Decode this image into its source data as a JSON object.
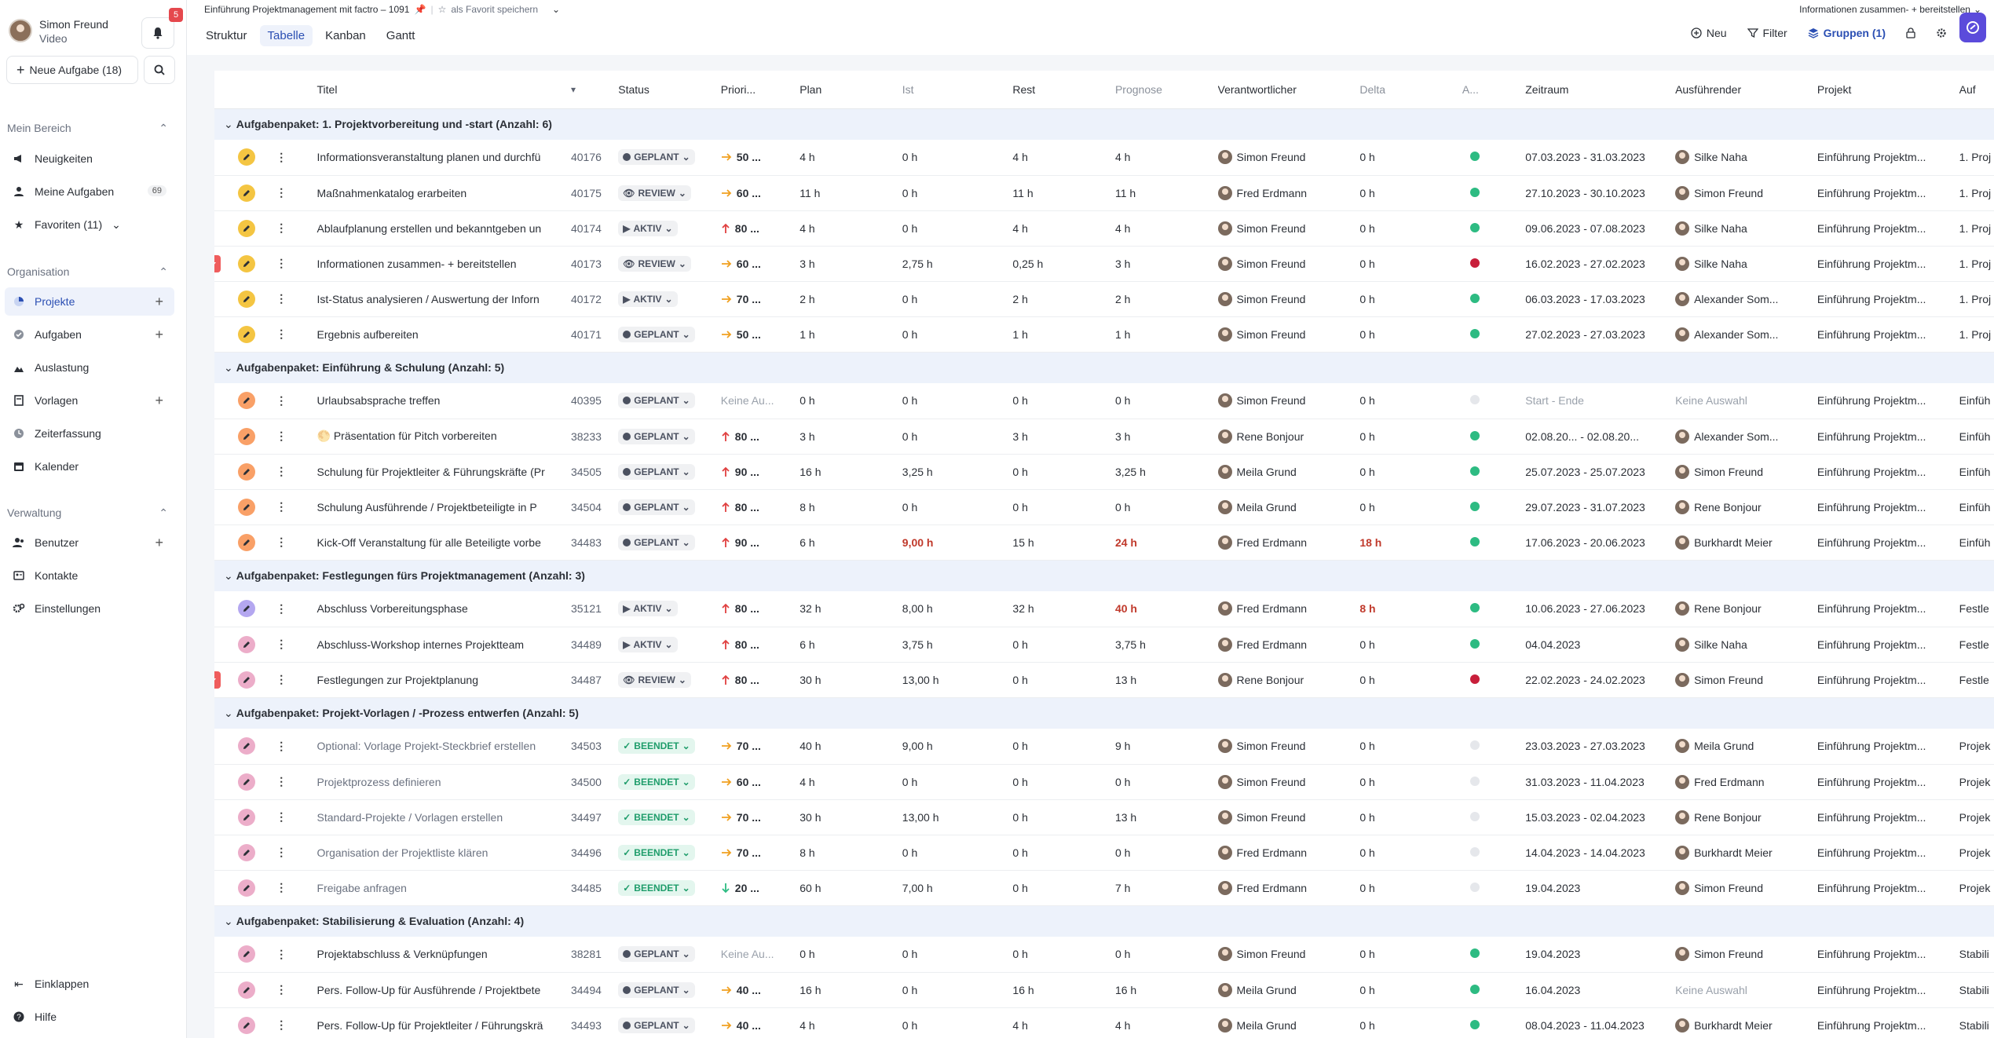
{
  "sidebar": {
    "user_name": "Simon Freund",
    "user_sub": "Video",
    "notif_count": "5",
    "new_task_label": "Neue Aufgabe (18)",
    "sections": {
      "mein_bereich": "Mein Bereich",
      "organisation": "Organisation",
      "verwaltung": "Verwaltung"
    },
    "items": {
      "neuigkeiten": "Neuigkeiten",
      "meine_aufgaben": "Meine Aufgaben",
      "meine_aufgaben_count": "69",
      "favoriten": "Favoriten (11)",
      "projekte": "Projekte",
      "aufgaben": "Aufgaben",
      "auslastung": "Auslastung",
      "vorlagen": "Vorlagen",
      "zeiterfassung": "Zeiterfassung",
      "kalender": "Kalender",
      "benutzer": "Benutzer",
      "kontakte": "Kontakte",
      "einstellungen": "Einstellungen",
      "einklappen": "Einklappen",
      "hilfe": "Hilfe"
    }
  },
  "topbar": {
    "breadcrumb": "Einführung Projektmanagement mit factro – 1091",
    "favorite": "als Favorit speichern",
    "top_right": "Informationen zusammen- + bereitstellen",
    "tabs": [
      "Struktur",
      "Tabelle",
      "Kanban",
      "Gantt"
    ],
    "active_tab": "Tabelle",
    "neu": "Neu",
    "filter": "Filter",
    "gruppen": "Gruppen (1)"
  },
  "table": {
    "headers": {
      "titel": "Titel",
      "status": "Status",
      "prio": "Priori...",
      "plan": "Plan",
      "ist": "Ist",
      "rest": "Rest",
      "prognose": "Prognose",
      "verantwortlicher": "Verantwortlicher",
      "delta": "Delta",
      "amp": "A...",
      "zeitraum": "Zeitraum",
      "ausfuehrender": "Ausführender",
      "projekt": "Projekt",
      "auf": "Auf"
    },
    "groups": [
      {
        "label": "Aufgabenpaket: 1. Projektvorbereitung und -start (Anzahl: 6)",
        "rows": [
          {
            "flag": false,
            "pencil": "yellow",
            "title": "Informationsveranstaltung planen und durchfü",
            "id": "40176",
            "status": "GEPLANT",
            "prio_dir": "right",
            "prio": "50 ...",
            "plan": "4 h",
            "ist": "0 h",
            "ist_red": false,
            "rest": "4 h",
            "prog": "4 h",
            "prog_red": false,
            "resp": "Simon Freund",
            "delta": "0 h",
            "delta_red": false,
            "amp": "green",
            "zeit": "07.03.2023 - 31.03.2023",
            "zeit_muted": false,
            "exec": "Silke Naha",
            "exec_muted": false,
            "proj": "Einführung Projektm...",
            "auf": "1. Proj"
          },
          {
            "flag": false,
            "pencil": "yellow",
            "title": "Maßnahmenkatalog erarbeiten",
            "id": "40175",
            "status": "REVIEW",
            "prio_dir": "right",
            "prio": "60 ...",
            "plan": "11 h",
            "ist": "0 h",
            "ist_red": false,
            "rest": "11 h",
            "prog": "11 h",
            "prog_red": false,
            "resp": "Fred Erdmann",
            "delta": "0 h",
            "delta_red": false,
            "amp": "green",
            "zeit": "27.10.2023 - 30.10.2023",
            "zeit_muted": false,
            "exec": "Simon Freund",
            "exec_muted": false,
            "proj": "Einführung Projektm...",
            "auf": "1. Proj"
          },
          {
            "flag": false,
            "pencil": "yellow",
            "title": "Ablaufplanung erstellen und bekanntgeben un",
            "id": "40174",
            "status": "AKTIV",
            "prio_dir": "up",
            "prio": "80 ...",
            "plan": "4 h",
            "ist": "0 h",
            "ist_red": false,
            "rest": "4 h",
            "prog": "4 h",
            "prog_red": false,
            "resp": "Simon Freund",
            "delta": "0 h",
            "delta_red": false,
            "amp": "green",
            "zeit": "09.06.2023 - 07.08.2023",
            "zeit_muted": false,
            "exec": "Silke Naha",
            "exec_muted": false,
            "proj": "Einführung Projektm...",
            "auf": "1. Proj"
          },
          {
            "flag": true,
            "pencil": "yellow",
            "title": "Informationen zusammen- + bereitstellen",
            "id": "40173",
            "status": "REVIEW",
            "prio_dir": "right",
            "prio": "60 ...",
            "plan": "3 h",
            "ist": "2,75 h",
            "ist_red": false,
            "rest": "0,25 h",
            "prog": "3 h",
            "prog_red": false,
            "resp": "Simon Freund",
            "delta": "0 h",
            "delta_red": false,
            "amp": "red",
            "zeit": "16.02.2023 - 27.02.2023",
            "zeit_muted": false,
            "exec": "Silke Naha",
            "exec_muted": false,
            "proj": "Einführung Projektm...",
            "auf": "1. Proj"
          },
          {
            "flag": false,
            "pencil": "yellow",
            "title": "Ist-Status analysieren / Auswertung der Inforn",
            "id": "40172",
            "status": "AKTIV",
            "prio_dir": "right",
            "prio": "70 ...",
            "plan": "2 h",
            "ist": "0 h",
            "ist_red": false,
            "rest": "2 h",
            "prog": "2 h",
            "prog_red": false,
            "resp": "Simon Freund",
            "delta": "0 h",
            "delta_red": false,
            "amp": "green",
            "zeit": "06.03.2023 - 17.03.2023",
            "zeit_muted": false,
            "exec": "Alexander Som...",
            "exec_muted": false,
            "proj": "Einführung Projektm...",
            "auf": "1. Proj"
          },
          {
            "flag": false,
            "pencil": "yellow",
            "title": "Ergebnis aufbereiten",
            "id": "40171",
            "status": "GEPLANT",
            "prio_dir": "right",
            "prio": "50 ...",
            "plan": "1 h",
            "ist": "0 h",
            "ist_red": false,
            "rest": "1 h",
            "prog": "1 h",
            "prog_red": false,
            "resp": "Simon Freund",
            "delta": "0 h",
            "delta_red": false,
            "amp": "green",
            "zeit": "27.02.2023 - 27.03.2023",
            "zeit_muted": false,
            "exec": "Alexander Som...",
            "exec_muted": false,
            "proj": "Einführung Projektm...",
            "auf": "1. Proj"
          }
        ]
      },
      {
        "label": "Aufgabenpaket: Einführung & Schulung (Anzahl: 5)",
        "rows": [
          {
            "flag": false,
            "pencil": "orange",
            "title": "Urlaubsabsprache treffen",
            "id": "40395",
            "status": "GEPLANT",
            "prio_dir": "none",
            "prio": "Keine Au...",
            "plan": "0 h",
            "ist": "0 h",
            "ist_red": false,
            "rest": "0 h",
            "prog": "0 h",
            "prog_red": false,
            "resp": "Simon Freund",
            "delta": "0 h",
            "delta_red": false,
            "amp": "grey",
            "zeit": "Start - Ende",
            "zeit_muted": true,
            "exec": "Keine Auswahl",
            "exec_muted": true,
            "proj": "Einführung Projektm...",
            "auf": "Einfüh"
          },
          {
            "flag": false,
            "pencil": "orange",
            "title": "🌕 Präsentation für Pitch vorbereiten",
            "id": "38233",
            "status": "GEPLANT",
            "prio_dir": "up",
            "prio": "80 ...",
            "plan": "3 h",
            "ist": "0 h",
            "ist_red": false,
            "rest": "3 h",
            "prog": "3 h",
            "prog_red": false,
            "resp": "Rene Bonjour",
            "delta": "0 h",
            "delta_red": false,
            "amp": "green",
            "zeit": "02.08.20... - 02.08.20...",
            "zeit_muted": false,
            "exec": "Alexander Som...",
            "exec_muted": false,
            "proj": "Einführung Projektm...",
            "auf": "Einfüh"
          },
          {
            "flag": false,
            "pencil": "orange",
            "title": "Schulung für Projektleiter & Führungskräfte (Pr",
            "id": "34505",
            "status": "GEPLANT",
            "prio_dir": "up",
            "prio": "90 ...",
            "plan": "16 h",
            "ist": "3,25 h",
            "ist_red": false,
            "rest": "0 h",
            "prog": "3,25 h",
            "prog_red": false,
            "resp": "Meila Grund",
            "delta": "0 h",
            "delta_red": false,
            "amp": "green",
            "zeit": "25.07.2023 - 25.07.2023",
            "zeit_muted": false,
            "exec": "Simon Freund",
            "exec_muted": false,
            "proj": "Einführung Projektm...",
            "auf": "Einfüh"
          },
          {
            "flag": false,
            "pencil": "orange",
            "title": "Schulung Ausführende / Projektbeteiligte in P",
            "id": "34504",
            "status": "GEPLANT",
            "prio_dir": "up",
            "prio": "80 ...",
            "plan": "8 h",
            "ist": "0 h",
            "ist_red": false,
            "rest": "0 h",
            "prog": "0 h",
            "prog_red": false,
            "resp": "Meila Grund",
            "delta": "0 h",
            "delta_red": false,
            "amp": "green",
            "zeit": "29.07.2023 - 31.07.2023",
            "zeit_muted": false,
            "exec": "Rene Bonjour",
            "exec_muted": false,
            "proj": "Einführung Projektm...",
            "auf": "Einfüh"
          },
          {
            "flag": false,
            "pencil": "orange",
            "title": "Kick-Off Veranstaltung für alle Beteiligte vorbe",
            "id": "34483",
            "status": "GEPLANT",
            "prio_dir": "up",
            "prio": "90 ...",
            "plan": "6 h",
            "ist": "9,00 h",
            "ist_red": true,
            "rest": "15 h",
            "prog": "24 h",
            "prog_red": true,
            "resp": "Fred Erdmann",
            "delta": "18 h",
            "delta_red": true,
            "amp": "green",
            "zeit": "17.06.2023 - 20.06.2023",
            "zeit_muted": false,
            "exec": "Burkhardt Meier",
            "exec_muted": false,
            "proj": "Einführung Projektm...",
            "auf": "Einfüh"
          }
        ]
      },
      {
        "label": "Aufgabenpaket: Festlegungen fürs Projektmanagement (Anzahl: 3)",
        "rows": [
          {
            "flag": false,
            "pencil": "purple",
            "title": "Abschluss Vorbereitungsphase",
            "id": "35121",
            "status": "AKTIV",
            "prio_dir": "up",
            "prio": "80 ...",
            "plan": "32 h",
            "ist": "8,00 h",
            "ist_red": false,
            "rest": "32 h",
            "prog": "40 h",
            "prog_red": true,
            "resp": "Fred Erdmann",
            "delta": "8 h",
            "delta_red": true,
            "amp": "green",
            "zeit": "10.06.2023 - 27.06.2023",
            "zeit_muted": false,
            "exec": "Rene Bonjour",
            "exec_muted": false,
            "proj": "Einführung Projektm...",
            "auf": "Festle"
          },
          {
            "flag": false,
            "pencil": "pink",
            "title": "Abschluss-Workshop internes Projektteam",
            "id": "34489",
            "status": "AKTIV",
            "prio_dir": "up",
            "prio": "80 ...",
            "plan": "6 h",
            "ist": "3,75 h",
            "ist_red": false,
            "rest": "0 h",
            "prog": "3,75 h",
            "prog_red": false,
            "resp": "Fred Erdmann",
            "delta": "0 h",
            "delta_red": false,
            "amp": "green",
            "zeit": "04.04.2023",
            "zeit_muted": false,
            "exec": "Silke Naha",
            "exec_muted": false,
            "proj": "Einführung Projektm...",
            "auf": "Festle"
          },
          {
            "flag": true,
            "pencil": "pink",
            "title": "Festlegungen zur Projektplanung",
            "id": "34487",
            "status": "REVIEW",
            "prio_dir": "up",
            "prio": "80 ...",
            "plan": "30 h",
            "ist": "13,00 h",
            "ist_red": false,
            "rest": "0 h",
            "prog": "13 h",
            "prog_red": false,
            "resp": "Rene Bonjour",
            "delta": "0 h",
            "delta_red": false,
            "amp": "red",
            "zeit": "22.02.2023 - 24.02.2023",
            "zeit_muted": false,
            "exec": "Simon Freund",
            "exec_muted": false,
            "proj": "Einführung Projektm...",
            "auf": "Festle"
          }
        ]
      },
      {
        "label": "Aufgabenpaket: Projekt-Vorlagen / -Prozess entwerfen (Anzahl: 5)",
        "rows": [
          {
            "flag": false,
            "pencil": "pink",
            "title": "Optional: Vorlage Projekt-Steckbrief erstellen",
            "id": "34503",
            "status": "BEENDET",
            "prio_dir": "right",
            "prio": "70 ...",
            "plan": "40 h",
            "ist": "9,00 h",
            "ist_red": false,
            "rest": "0 h",
            "prog": "9 h",
            "prog_red": false,
            "resp": "Simon Freund",
            "delta": "0 h",
            "delta_red": false,
            "amp": "grey",
            "zeit": "23.03.2023 - 27.03.2023",
            "zeit_muted": false,
            "exec": "Meila Grund",
            "exec_muted": false,
            "proj": "Einführung Projektm...",
            "auf": "Projek"
          },
          {
            "flag": false,
            "pencil": "pink",
            "title": "Projektprozess definieren",
            "id": "34500",
            "status": "BEENDET",
            "prio_dir": "right",
            "prio": "60 ...",
            "plan": "4 h",
            "ist": "0 h",
            "ist_red": false,
            "rest": "0 h",
            "prog": "0 h",
            "prog_red": false,
            "resp": "Simon Freund",
            "delta": "0 h",
            "delta_red": false,
            "amp": "grey",
            "zeit": "31.03.2023 - 11.04.2023",
            "zeit_muted": false,
            "exec": "Fred Erdmann",
            "exec_muted": false,
            "proj": "Einführung Projektm...",
            "auf": "Projek"
          },
          {
            "flag": false,
            "pencil": "pink",
            "title": "Standard-Projekte / Vorlagen erstellen",
            "id": "34497",
            "status": "BEENDET",
            "prio_dir": "right",
            "prio": "70 ...",
            "plan": "30 h",
            "ist": "13,00 h",
            "ist_red": false,
            "rest": "0 h",
            "prog": "13 h",
            "prog_red": false,
            "resp": "Simon Freund",
            "delta": "0 h",
            "delta_red": false,
            "amp": "grey",
            "zeit": "15.03.2023 - 02.04.2023",
            "zeit_muted": false,
            "exec": "Rene Bonjour",
            "exec_muted": false,
            "proj": "Einführung Projektm...",
            "auf": "Projek"
          },
          {
            "flag": false,
            "pencil": "pink",
            "title": "Organisation der Projektliste klären",
            "id": "34496",
            "status": "BEENDET",
            "prio_dir": "right",
            "prio": "70 ...",
            "plan": "8 h",
            "ist": "0 h",
            "ist_red": false,
            "rest": "0 h",
            "prog": "0 h",
            "prog_red": false,
            "resp": "Fred Erdmann",
            "delta": "0 h",
            "delta_red": false,
            "amp": "grey",
            "zeit": "14.04.2023 - 14.04.2023",
            "zeit_muted": false,
            "exec": "Burkhardt Meier",
            "exec_muted": false,
            "proj": "Einführung Projektm...",
            "auf": "Projek"
          },
          {
            "flag": false,
            "pencil": "pink",
            "title": "Freigabe anfragen",
            "id": "34485",
            "status": "BEENDET",
            "prio_dir": "down",
            "prio": "20 ...",
            "plan": "60 h",
            "ist": "7,00 h",
            "ist_red": false,
            "rest": "0 h",
            "prog": "7 h",
            "prog_red": false,
            "resp": "Fred Erdmann",
            "delta": "0 h",
            "delta_red": false,
            "amp": "grey",
            "zeit": "19.04.2023",
            "zeit_muted": false,
            "exec": "Simon Freund",
            "exec_muted": false,
            "proj": "Einführung Projektm...",
            "auf": "Projek"
          }
        ]
      },
      {
        "label": "Aufgabenpaket: Stabilisierung & Evaluation (Anzahl: 4)",
        "rows": [
          {
            "flag": false,
            "pencil": "pink",
            "title": "Projektabschluss & Verknüpfungen",
            "id": "38281",
            "status": "GEPLANT",
            "prio_dir": "none",
            "prio": "Keine Au...",
            "plan": "0 h",
            "ist": "0 h",
            "ist_red": false,
            "rest": "0 h",
            "prog": "0 h",
            "prog_red": false,
            "resp": "Simon Freund",
            "delta": "0 h",
            "delta_red": false,
            "amp": "green",
            "zeit": "19.04.2023",
            "zeit_muted": false,
            "exec": "Simon Freund",
            "exec_muted": false,
            "proj": "Einführung Projektm...",
            "auf": "Stabili"
          },
          {
            "flag": false,
            "pencil": "pink",
            "title": "Pers. Follow-Up für Ausführende / Projektbete",
            "id": "34494",
            "status": "GEPLANT",
            "prio_dir": "right",
            "prio": "40 ...",
            "plan": "16 h",
            "ist": "0 h",
            "ist_red": false,
            "rest": "16 h",
            "prog": "16 h",
            "prog_red": false,
            "resp": "Meila Grund",
            "delta": "0 h",
            "delta_red": false,
            "amp": "green",
            "zeit": "16.04.2023",
            "zeit_muted": false,
            "exec": "Keine Auswahl",
            "exec_muted": true,
            "proj": "Einführung Projektm...",
            "auf": "Stabili"
          },
          {
            "flag": false,
            "pencil": "pink",
            "title": "Pers. Follow-Up für Projektleiter / Führungskrä",
            "id": "34493",
            "status": "GEPLANT",
            "prio_dir": "right",
            "prio": "40 ...",
            "plan": "4 h",
            "ist": "0 h",
            "ist_red": false,
            "rest": "4 h",
            "prog": "4 h",
            "prog_red": false,
            "resp": "Meila Grund",
            "delta": "0 h",
            "delta_red": false,
            "amp": "green",
            "zeit": "08.04.2023 - 11.04.2023",
            "zeit_muted": false,
            "exec": "Burkhardt Meier",
            "exec_muted": false,
            "proj": "Einführung Projektm...",
            "auf": "Stabili"
          }
        ]
      }
    ]
  }
}
